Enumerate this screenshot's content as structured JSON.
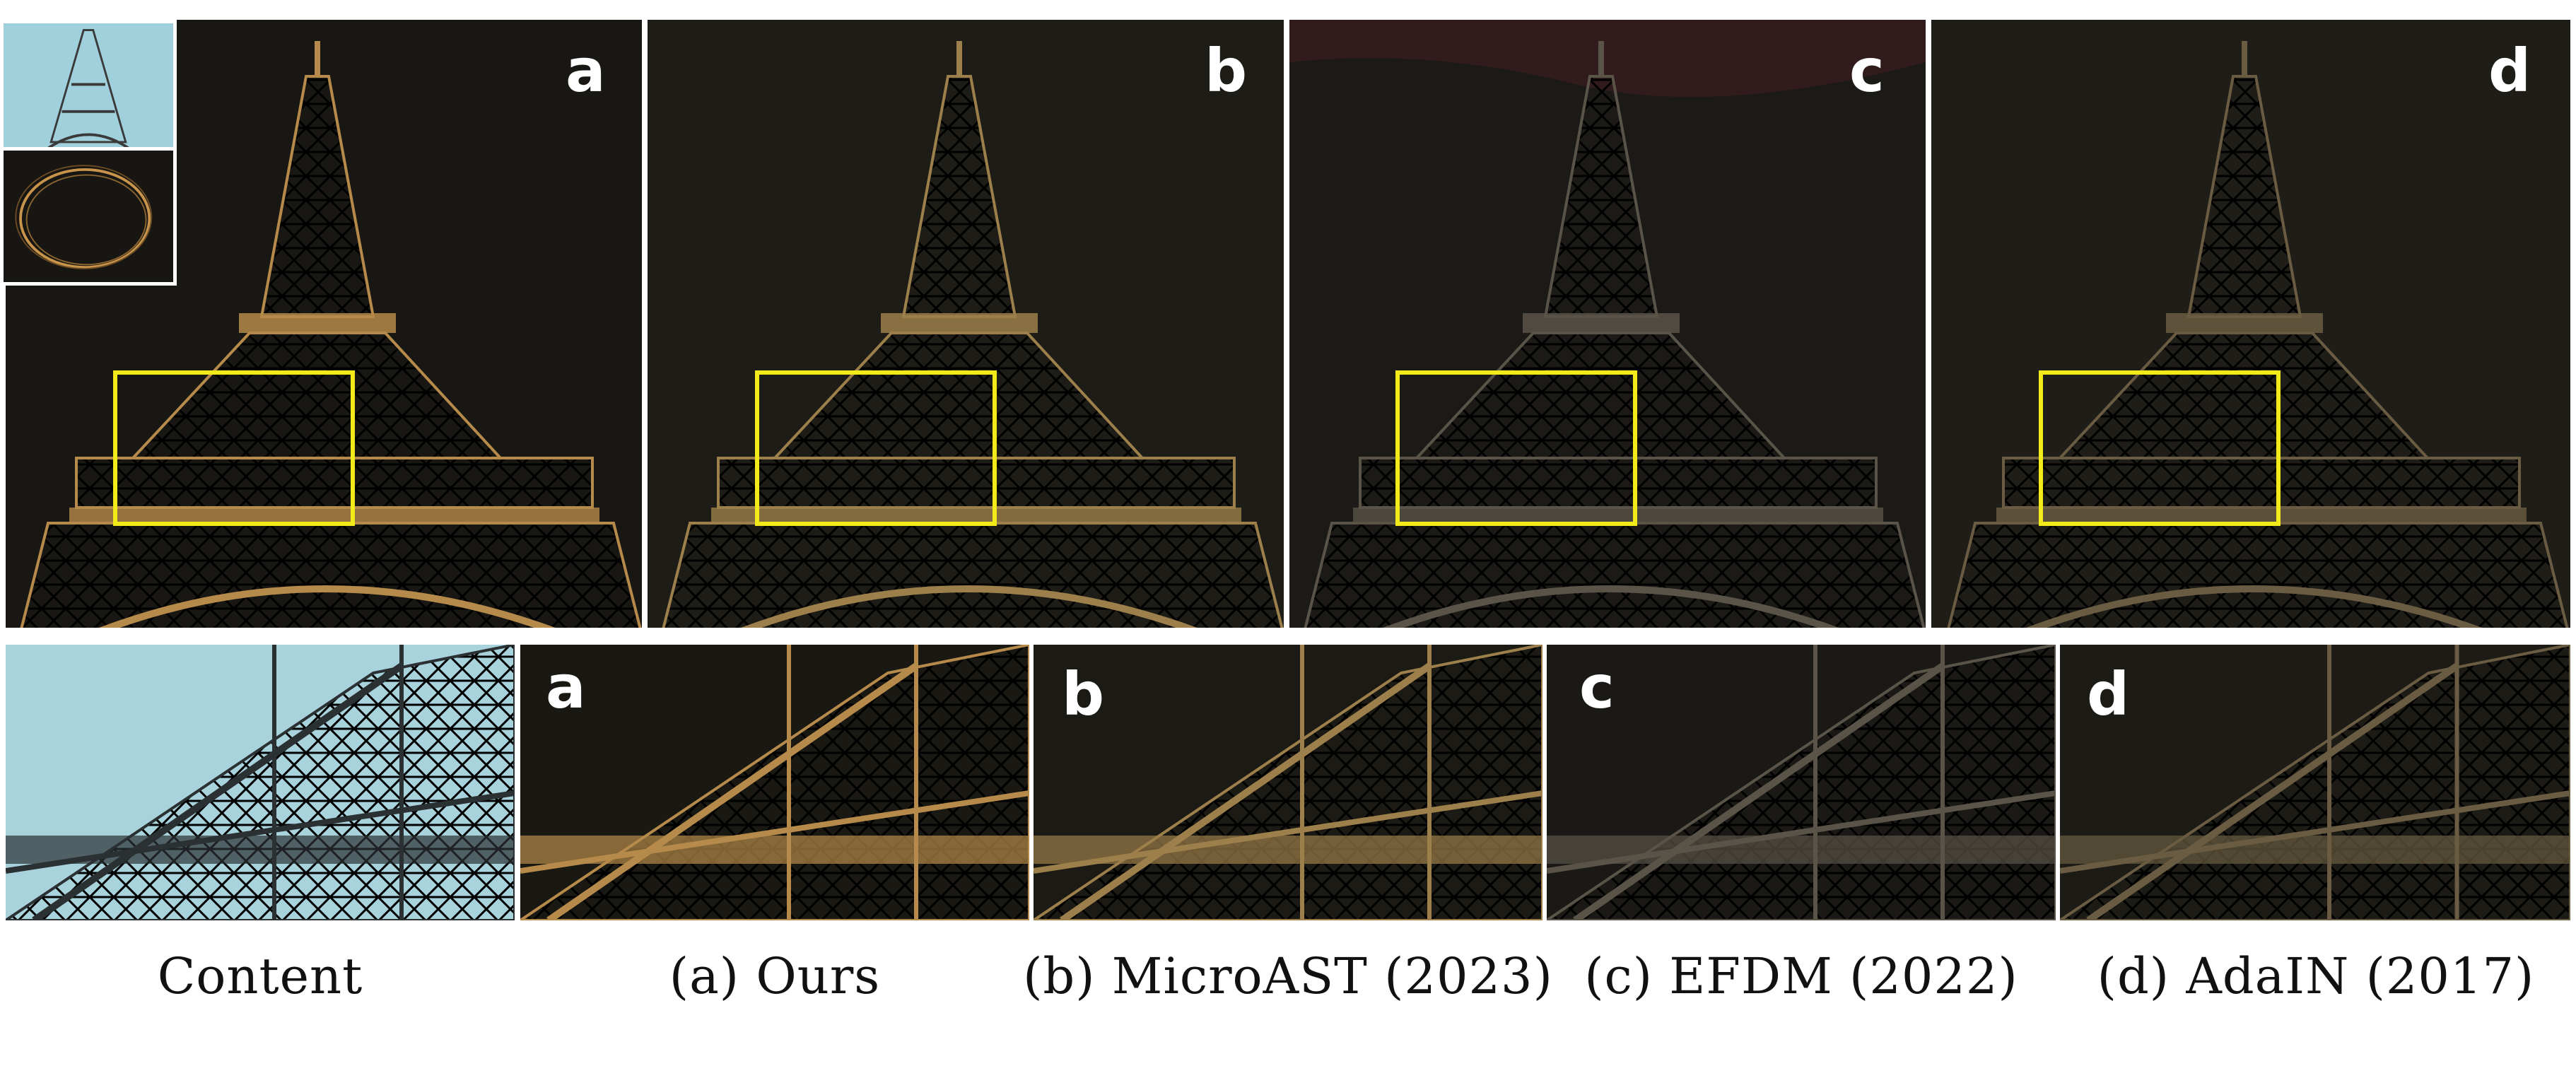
{
  "top_row": {
    "panels": [
      {
        "letter": "a"
      },
      {
        "letter": "b"
      },
      {
        "letter": "c"
      },
      {
        "letter": "d"
      }
    ]
  },
  "bottom_row": {
    "panels": [
      {
        "letter": ""
      },
      {
        "letter": "a"
      },
      {
        "letter": "b"
      },
      {
        "letter": "c"
      },
      {
        "letter": "d"
      }
    ]
  },
  "captions": [
    "Content",
    "(a) Ours",
    "(b) MicroAST (2023)",
    "(c) EFDM (2022)",
    "(d) AdaIN (2017)"
  ],
  "colors": {
    "highlight_box": "#f3ea1a",
    "ours_tint": "#b58a4a",
    "microast_tint": "#9c7f4a",
    "efdm_tint": "#5a5448",
    "adain_tint": "#6a5c42",
    "dark_background": "#1c1b17",
    "sky": "#a9d3dc"
  }
}
